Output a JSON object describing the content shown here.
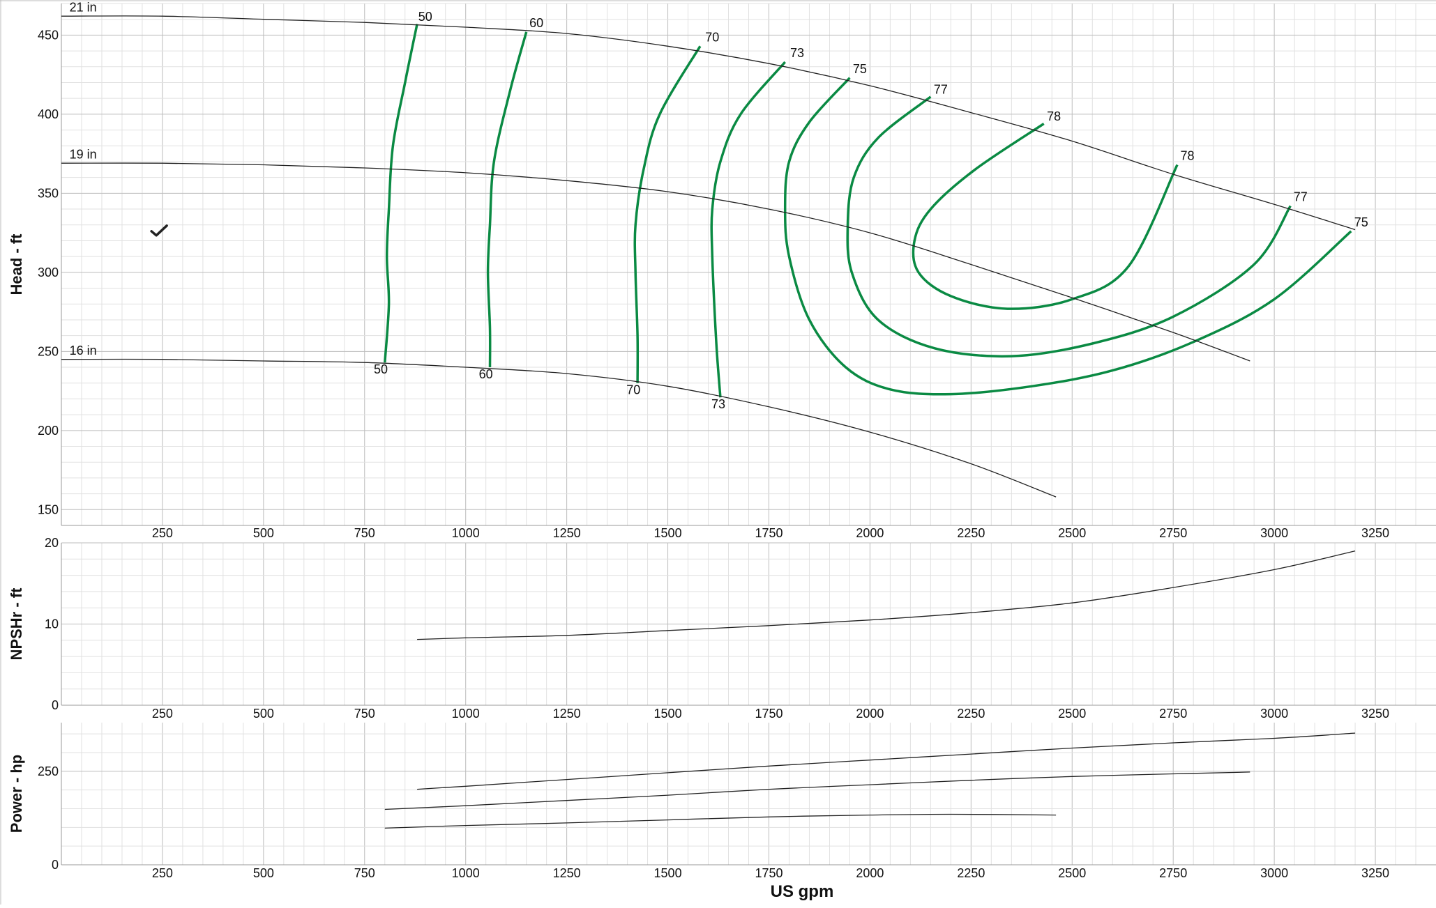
{
  "chart_data": [
    {
      "type": "line",
      "panel": "head",
      "ylabel": "Head - ft",
      "xlabel": "",
      "xlim": [
        0,
        3400
      ],
      "ylim": [
        140,
        470
      ],
      "x_ticks": [
        250,
        500,
        750,
        1000,
        1250,
        1500,
        1750,
        2000,
        2250,
        2500,
        2750,
        3000,
        3250
      ],
      "x_tick_labels": [
        "250",
        "500",
        "750",
        "1000",
        "1250",
        "1500",
        "1750",
        "2000",
        "2250",
        "2500",
        "2750",
        "3000",
        "3250"
      ],
      "y_ticks": [
        150,
        200,
        250,
        300,
        350,
        400,
        450
      ],
      "y_tick_labels": [
        "150",
        "200",
        "250",
        "300",
        "350",
        "400",
        "450"
      ],
      "grid": true,
      "impeller_curves": [
        {
          "name": "21 in",
          "x": [
            0,
            250,
            500,
            750,
            1000,
            1250,
            1500,
            1750,
            2000,
            2250,
            2500,
            2750,
            3000,
            3200
          ],
          "y": [
            462,
            462,
            460,
            458,
            455,
            451,
            443,
            432,
            418,
            401,
            383,
            362,
            343,
            327
          ]
        },
        {
          "name": "19 in",
          "x": [
            0,
            250,
            500,
            750,
            1000,
            1250,
            1500,
            1750,
            2000,
            2250,
            2500,
            2750,
            2940
          ],
          "y": [
            369,
            369,
            368,
            366,
            363,
            358,
            351,
            340,
            325,
            305,
            284,
            262,
            244
          ]
        },
        {
          "name": "16 in",
          "x": [
            0,
            250,
            500,
            750,
            1000,
            1250,
            1500,
            1750,
            2000,
            2250,
            2460
          ],
          "y": [
            245,
            245,
            244,
            243,
            240,
            236,
            228,
            215,
            199,
            179,
            158
          ]
        }
      ],
      "efficiency_contours": [
        {
          "x": [
            880,
            850,
            820,
            810,
            805,
            810,
            800
          ],
          "y": [
            457,
            420,
            380,
            340,
            310,
            280,
            243
          ]
        },
        {
          "x": [
            1150,
            1110,
            1070,
            1060,
            1055,
            1060,
            1060
          ],
          "y": [
            452,
            415,
            370,
            330,
            300,
            265,
            240
          ]
        },
        {
          "x": [
            1580,
            1480,
            1440,
            1420,
            1420,
            1425,
            1425
          ],
          "y": [
            443,
            400,
            365,
            330,
            300,
            260,
            230
          ]
        },
        {
          "x": [
            1790,
            1680,
            1630,
            1610,
            1610,
            1620,
            1630
          ],
          "y": [
            433,
            400,
            370,
            340,
            310,
            255,
            221
          ]
        },
        {
          "x": [
            1950,
            1850,
            1800,
            1790,
            1800,
            1850,
            1940,
            2050,
            2200,
            2400,
            2600,
            2800,
            3000,
            3190
          ],
          "y": [
            423,
            395,
            370,
            340,
            310,
            270,
            240,
            226,
            223,
            228,
            238,
            256,
            283,
            326
          ]
        },
        {
          "x": [
            2150,
            2020,
            1960,
            1945,
            1955,
            2020,
            2160,
            2350,
            2550,
            2750,
            2950,
            3040
          ],
          "y": [
            411,
            385,
            360,
            330,
            300,
            270,
            252,
            247,
            255,
            272,
            305,
            342
          ]
        },
        {
          "x": [
            2430,
            2260,
            2150,
            2110,
            2120,
            2200,
            2340,
            2500,
            2640,
            2760
          ],
          "y": [
            394,
            365,
            340,
            320,
            300,
            285,
            277,
            283,
            304,
            368
          ]
        }
      ],
      "efficiency_labels": [
        {
          "text": "50",
          "x": 900,
          "y": 459
        },
        {
          "text": "60",
          "x": 1175,
          "y": 455
        },
        {
          "text": "70",
          "x": 1610,
          "y": 446
        },
        {
          "text": "73",
          "x": 1820,
          "y": 436
        },
        {
          "text": "75",
          "x": 1975,
          "y": 426
        },
        {
          "text": "77",
          "x": 2175,
          "y": 413
        },
        {
          "text": "78",
          "x": 2455,
          "y": 396
        },
        {
          "text": "78",
          "x": 2785,
          "y": 371
        },
        {
          "text": "77",
          "x": 3065,
          "y": 345
        },
        {
          "text": "75",
          "x": 3215,
          "y": 329
        },
        {
          "text": "50",
          "x": 790,
          "y": 236
        },
        {
          "text": "60",
          "x": 1050,
          "y": 233
        },
        {
          "text": "70",
          "x": 1415,
          "y": 223
        },
        {
          "text": "73",
          "x": 1625,
          "y": 214
        }
      ],
      "curve_labels": [
        {
          "text": "21 in",
          "x": 20,
          "y": 465
        },
        {
          "text": "19 in",
          "x": 20,
          "y": 372
        },
        {
          "text": "16 in",
          "x": 20,
          "y": 248
        }
      ],
      "marker": {
        "symbol": "checkmark",
        "x": 240,
        "y": 326
      }
    },
    {
      "type": "line",
      "panel": "npshr",
      "ylabel": "NPSHr - ft",
      "xlabel": "",
      "xlim": [
        0,
        3400
      ],
      "ylim": [
        0,
        20
      ],
      "x_ticks": [
        250,
        500,
        750,
        1000,
        1250,
        1500,
        1750,
        2000,
        2250,
        2500,
        2750,
        3000,
        3250
      ],
      "x_tick_labels": [
        "250",
        "500",
        "750",
        "1000",
        "1250",
        "1500",
        "1750",
        "2000",
        "2250",
        "2500",
        "2750",
        "3000",
        "3250"
      ],
      "y_ticks": [
        0,
        10,
        20
      ],
      "y_tick_labels": [
        "0",
        "10",
        "20"
      ],
      "grid": true,
      "series": [
        {
          "x": [
            880,
            1000,
            1250,
            1500,
            1750,
            2000,
            2250,
            2500,
            2750,
            3000,
            3200
          ],
          "y": [
            8.1,
            8.3,
            8.6,
            9.2,
            9.8,
            10.5,
            11.4,
            12.6,
            14.5,
            16.7,
            19.0
          ]
        }
      ]
    },
    {
      "type": "line",
      "panel": "power",
      "ylabel": "Power - hp",
      "xlabel": "US gpm",
      "xlim": [
        0,
        3400
      ],
      "ylim": [
        0,
        380
      ],
      "x_ticks": [
        250,
        500,
        750,
        1000,
        1250,
        1500,
        1750,
        2000,
        2250,
        2500,
        2750,
        3000,
        3250
      ],
      "x_tick_labels": [
        "250",
        "500",
        "750",
        "1000",
        "1250",
        "1500",
        "1750",
        "2000",
        "2250",
        "2500",
        "2750",
        "3000",
        "3250"
      ],
      "y_ticks": [
        0,
        250
      ],
      "y_tick_labels": [
        "0",
        "250"
      ],
      "grid": true,
      "series": [
        {
          "x": [
            880,
            1000,
            1250,
            1500,
            1750,
            2000,
            2250,
            2500,
            2750,
            3000,
            3200
          ],
          "y": [
            202,
            210,
            228,
            246,
            264,
            280,
            296,
            312,
            326,
            338,
            352
          ]
        },
        {
          "x": [
            800,
            1000,
            1250,
            1500,
            1750,
            2000,
            2250,
            2500,
            2750,
            2940
          ],
          "y": [
            148,
            158,
            172,
            186,
            202,
            214,
            226,
            236,
            243,
            248
          ]
        },
        {
          "x": [
            800,
            1000,
            1250,
            1500,
            1750,
            2000,
            2200,
            2460
          ],
          "y": [
            98,
            105,
            112,
            120,
            128,
            133,
            135,
            133
          ]
        }
      ]
    }
  ]
}
